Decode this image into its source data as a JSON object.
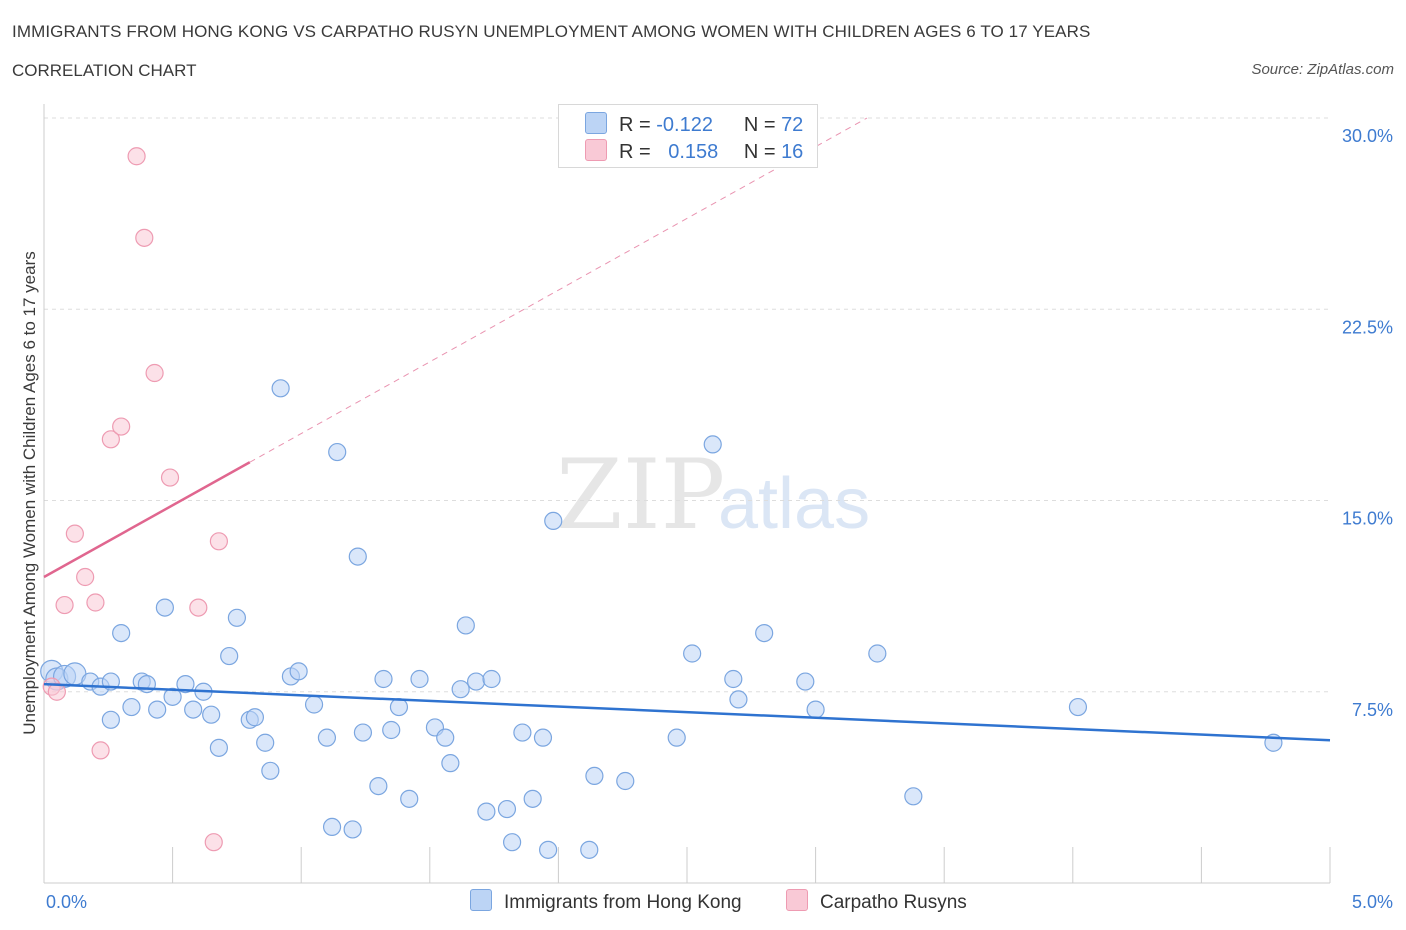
{
  "header": {
    "title": "IMMIGRANTS FROM HONG KONG VS CARPATHO RUSYN UNEMPLOYMENT AMONG WOMEN WITH CHILDREN AGES 6 TO 17 YEARS",
    "subtitle": "CORRELATION CHART",
    "source": "Source: ZipAtlas.com"
  },
  "watermark": {
    "zip": "ZIP",
    "atlas": "atlas"
  },
  "legend": {
    "rows": [
      {
        "r_label": "R =",
        "r_value": "-0.122",
        "n_label": "N =",
        "n_value": "72"
      },
      {
        "r_label": "R =",
        "r_value": "0.158",
        "n_label": "N =",
        "n_value": "16"
      }
    ]
  },
  "colors": {
    "blue_fill": "#bcd4f5",
    "blue_stroke": "#7ba6e0",
    "blue_line": "#2f73d0",
    "pink_fill": "#f9c9d6",
    "pink_stroke": "#ee9bb2",
    "pink_line": "#e0668f",
    "grid": "#dddddd",
    "tick_label": "#3e7bd0"
  },
  "chart_data": {
    "type": "scatter",
    "title": "IMMIGRANTS FROM HONG KONG VS CARPATHO RUSYN UNEMPLOYMENT AMONG WOMEN WITH CHILDREN AGES 6 TO 17 YEARS",
    "subtitle": "CORRELATION CHART",
    "xlabel": "",
    "ylabel": "Unemployment Among Women with Children Ages 6 to 17 years",
    "xlim": [
      0,
      5
    ],
    "ylim": [
      0,
      30
    ],
    "x_tick_labels": [
      "0.0%",
      "5.0%"
    ],
    "x_tick_values": [
      0,
      5
    ],
    "y_tick_labels": [
      "7.5%",
      "15.0%",
      "22.5%",
      "30.0%"
    ],
    "y_tick_values": [
      7.5,
      15,
      22.5,
      30
    ],
    "grid": true,
    "legend_position": "bottom-center",
    "series": [
      {
        "name": "Immigrants from Hong Kong",
        "r": -0.122,
        "n": 72,
        "trend": {
          "x": [
            0,
            5
          ],
          "y": [
            7.8,
            5.6
          ],
          "style": "solid"
        },
        "points": [
          [
            0.03,
            8.3
          ],
          [
            0.05,
            8.0
          ],
          [
            0.08,
            8.1
          ],
          [
            0.12,
            8.2
          ],
          [
            0.18,
            7.9
          ],
          [
            0.22,
            7.7
          ],
          [
            0.26,
            7.9
          ],
          [
            0.3,
            9.8
          ],
          [
            0.26,
            6.4
          ],
          [
            0.34,
            6.9
          ],
          [
            0.38,
            7.9
          ],
          [
            0.4,
            7.8
          ],
          [
            0.44,
            6.8
          ],
          [
            0.47,
            10.8
          ],
          [
            0.5,
            7.3
          ],
          [
            0.55,
            7.8
          ],
          [
            0.58,
            6.8
          ],
          [
            0.62,
            7.5
          ],
          [
            0.65,
            6.6
          ],
          [
            0.68,
            5.3
          ],
          [
            0.72,
            8.9
          ],
          [
            0.75,
            10.4
          ],
          [
            0.8,
            6.4
          ],
          [
            0.82,
            6.5
          ],
          [
            0.86,
            5.5
          ],
          [
            0.88,
            4.4
          ],
          [
            0.92,
            19.4
          ],
          [
            0.96,
            8.1
          ],
          [
            0.99,
            8.3
          ],
          [
            1.05,
            7.0
          ],
          [
            1.1,
            5.7
          ],
          [
            1.12,
            2.2
          ],
          [
            1.14,
            16.9
          ],
          [
            1.2,
            2.1
          ],
          [
            1.22,
            12.8
          ],
          [
            1.24,
            5.9
          ],
          [
            1.3,
            3.8
          ],
          [
            1.32,
            8.0
          ],
          [
            1.35,
            6.0
          ],
          [
            1.38,
            6.9
          ],
          [
            1.42,
            3.3
          ],
          [
            1.46,
            8.0
          ],
          [
            1.52,
            6.1
          ],
          [
            1.56,
            5.7
          ],
          [
            1.58,
            4.7
          ],
          [
            1.62,
            7.6
          ],
          [
            1.64,
            10.1
          ],
          [
            1.68,
            7.9
          ],
          [
            1.72,
            2.8
          ],
          [
            1.74,
            8.0
          ],
          [
            1.8,
            2.9
          ],
          [
            1.82,
            1.6
          ],
          [
            1.86,
            5.9
          ],
          [
            1.9,
            3.3
          ],
          [
            1.94,
            5.7
          ],
          [
            1.96,
            1.3
          ],
          [
            1.98,
            14.2
          ],
          [
            2.12,
            1.3
          ],
          [
            2.14,
            4.2
          ],
          [
            2.26,
            4.0
          ],
          [
            2.46,
            5.7
          ],
          [
            2.52,
            9.0
          ],
          [
            2.6,
            17.2
          ],
          [
            2.68,
            8.0
          ],
          [
            2.7,
            7.2
          ],
          [
            2.8,
            9.8
          ],
          [
            2.96,
            7.9
          ],
          [
            3.0,
            6.8
          ],
          [
            3.24,
            9.0
          ],
          [
            3.38,
            3.4
          ],
          [
            4.02,
            6.9
          ],
          [
            4.78,
            5.5
          ]
        ]
      },
      {
        "name": "Carpatho Rusyns",
        "r": 0.158,
        "n": 16,
        "trend": {
          "x": [
            0,
            0.8
          ],
          "y": [
            12.0,
            16.5
          ],
          "style": "solid",
          "extended_to": [
            3.2,
            30.0
          ],
          "extended_style": "dashed"
        },
        "points": [
          [
            0.03,
            7.7
          ],
          [
            0.05,
            7.5
          ],
          [
            0.08,
            10.9
          ],
          [
            0.12,
            13.7
          ],
          [
            0.16,
            12.0
          ],
          [
            0.2,
            11.0
          ],
          [
            0.22,
            5.2
          ],
          [
            0.26,
            17.4
          ],
          [
            0.3,
            17.9
          ],
          [
            0.36,
            28.5
          ],
          [
            0.39,
            25.3
          ],
          [
            0.43,
            20.0
          ],
          [
            0.49,
            15.9
          ],
          [
            0.6,
            10.8
          ],
          [
            0.66,
            1.6
          ],
          [
            0.68,
            13.4
          ]
        ]
      }
    ]
  }
}
